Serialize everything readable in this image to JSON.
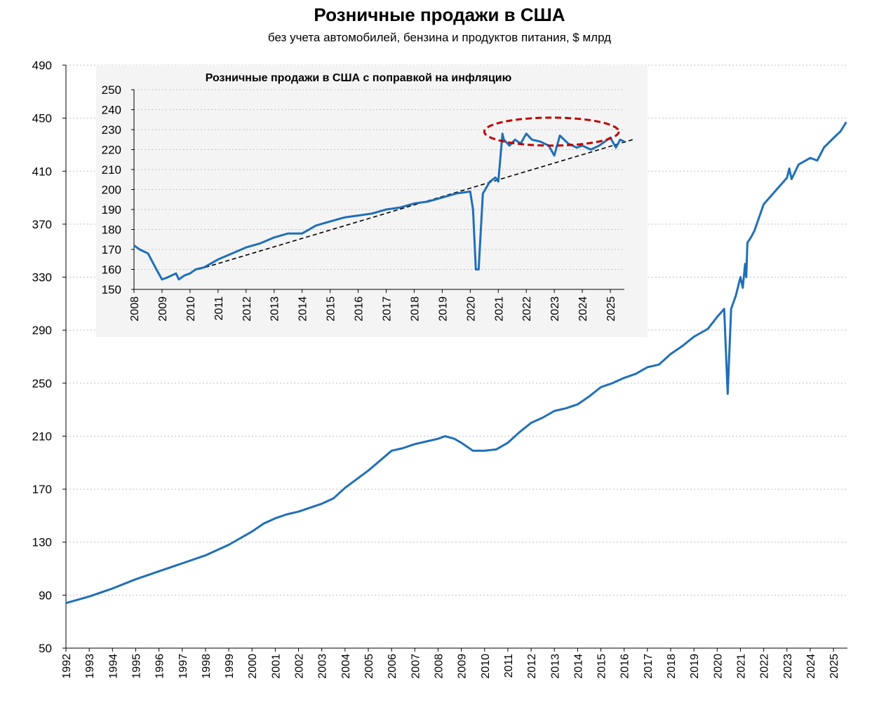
{
  "title": "Розничные продажи в США",
  "subtitle": "без учета автомобилей, бензина и продуктов питания,  $ млрд",
  "colors": {
    "line": "#1f6fb8",
    "trend": "#000000",
    "ellipse": "#c00000",
    "grid": "#bfbfbf",
    "inset_bg": "#f4f4f4"
  },
  "chart_data": [
    {
      "type": "line",
      "title": "Розничные продажи в США",
      "ylim": [
        50,
        490
      ],
      "xlim": [
        1992,
        2025.6
      ],
      "yticks": [
        "490",
        "450",
        "410",
        "370",
        "330",
        "290",
        "250",
        "210",
        "170",
        "130",
        "90",
        "50"
      ],
      "xticks": [
        "1992",
        "1993",
        "1994",
        "1995",
        "1996",
        "1997",
        "1998",
        "1999",
        "2000",
        "2001",
        "2002",
        "2003",
        "2004",
        "2005",
        "2006",
        "2007",
        "2008",
        "2009",
        "2010",
        "2011",
        "2012",
        "2013",
        "2014",
        "2015",
        "2016",
        "2017",
        "2018",
        "2019",
        "2020",
        "2021",
        "2022",
        "2023",
        "2024",
        "2025"
      ],
      "series": [
        {
          "name": "Розничные продажи",
          "x": [
            1992.0,
            1993.0,
            1994.0,
            1995.0,
            1996.0,
            1997.0,
            1998.0,
            1999.0,
            2000.0,
            2000.5,
            2001.0,
            2001.5,
            2002.0,
            2003.0,
            2003.5,
            2004.0,
            2005.0,
            2006.0,
            2006.5,
            2007.0,
            2007.5,
            2008.0,
            2008.3,
            2008.7,
            2009.0,
            2009.5,
            2010.0,
            2010.5,
            2011.0,
            2011.5,
            2012.0,
            2012.5,
            2013.0,
            2013.5,
            2014.0,
            2014.5,
            2015.0,
            2015.5,
            2016.0,
            2016.5,
            2017.0,
            2017.5,
            2018.0,
            2018.5,
            2019.0,
            2019.3,
            2019.6,
            2020.0,
            2020.15,
            2020.3,
            2020.45,
            2020.6,
            2020.8,
            2021.0,
            2021.1,
            2021.2,
            2021.25,
            2021.3,
            2021.45,
            2021.6,
            2021.8,
            2022.0,
            2022.5,
            2023.0,
            2023.1,
            2023.2,
            2023.5,
            2024.0,
            2024.3,
            2024.6,
            2025.0,
            2025.3,
            2025.55
          ],
          "values": [
            84,
            89,
            95,
            102,
            108,
            114,
            120,
            128,
            138,
            144,
            148,
            151,
            153,
            159,
            163,
            171,
            184,
            199,
            201,
            204,
            206,
            208,
            210,
            208,
            205,
            199,
            199,
            200,
            205,
            213,
            220,
            224,
            229,
            231,
            234,
            240,
            247,
            250,
            254,
            257,
            262,
            264,
            272,
            278,
            285,
            288,
            291,
            300,
            303,
            306,
            242,
            306,
            316,
            330,
            322,
            340,
            330,
            356,
            360,
            365,
            375,
            385,
            395,
            405,
            412,
            404,
            415,
            420,
            418,
            428,
            435,
            440,
            447
          ]
        }
      ]
    },
    {
      "type": "line",
      "title": "Розничные продажи в США с поправкой на инфляцию",
      "ylim": [
        150,
        250
      ],
      "xlim": [
        2008,
        2025.5
      ],
      "yticks": [
        "250",
        "240",
        "230",
        "220",
        "210",
        "200",
        "190",
        "180",
        "170",
        "160",
        "150"
      ],
      "xticks": [
        "2008",
        "2009",
        "2010",
        "2011",
        "2012",
        "2013",
        "2014",
        "2015",
        "2016",
        "2017",
        "2018",
        "2019",
        "2020",
        "2021",
        "2022",
        "2023",
        "2024",
        "2025"
      ],
      "series": [
        {
          "name": "С поправкой на инфляцию",
          "x": [
            2008.0,
            2008.2,
            2008.5,
            2008.8,
            2009.0,
            2009.2,
            2009.5,
            2009.6,
            2009.8,
            2010.0,
            2010.2,
            2010.5,
            2011.0,
            2011.5,
            2012.0,
            2012.5,
            2013.0,
            2013.5,
            2014.0,
            2014.5,
            2015.0,
            2015.5,
            2016.0,
            2016.5,
            2017.0,
            2017.5,
            2018.0,
            2018.5,
            2019.0,
            2019.5,
            2020.0,
            2020.1,
            2020.2,
            2020.3,
            2020.45,
            2020.7,
            2020.9,
            2021.0,
            2021.1,
            2021.15,
            2021.2,
            2021.4,
            2021.6,
            2021.8,
            2022.0,
            2022.2,
            2022.5,
            2022.8,
            2023.0,
            2023.2,
            2023.5,
            2023.8,
            2024.0,
            2024.3,
            2024.6,
            2025.0,
            2025.2,
            2025.35,
            2025.5
          ],
          "values": [
            172,
            170,
            168,
            160,
            155,
            156,
            158,
            155,
            157,
            158,
            160,
            161,
            165,
            168,
            171,
            173,
            176,
            178,
            178,
            182,
            184,
            186,
            187,
            188,
            190,
            191,
            193,
            194,
            196,
            198,
            199,
            190,
            160,
            160,
            198,
            204,
            206,
            204,
            220,
            228,
            225,
            222,
            225,
            223,
            228,
            225,
            224,
            222,
            217,
            227,
            223,
            221,
            222,
            220,
            222,
            226,
            221,
            225,
            224
          ]
        }
      ],
      "trend": {
        "x": [
          2010.3,
          2025.8
        ],
        "values": [
          160,
          225
        ]
      },
      "highlight": {
        "x_center": 2022.9,
        "y_center": 229,
        "rx_years": 2.4,
        "ry_units": 7
      }
    }
  ]
}
